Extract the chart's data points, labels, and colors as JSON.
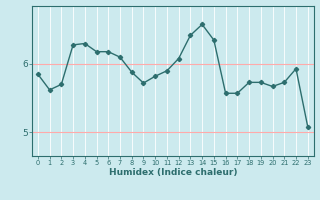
{
  "x": [
    0,
    1,
    2,
    3,
    4,
    5,
    6,
    7,
    8,
    9,
    10,
    11,
    12,
    13,
    14,
    15,
    16,
    17,
    18,
    19,
    20,
    21,
    22,
    23
  ],
  "y": [
    5.85,
    5.62,
    5.7,
    6.28,
    6.3,
    6.18,
    6.18,
    6.1,
    5.88,
    5.72,
    5.82,
    5.9,
    6.08,
    6.42,
    6.58,
    6.35,
    5.57,
    5.57,
    5.73,
    5.73,
    5.67,
    5.73,
    5.93,
    5.08
  ],
  "line_color": "#2d6e6e",
  "marker": "D",
  "marker_size": 2.2,
  "xlabel": "Humidex (Indice chaleur)",
  "bg_color": "#cceaee",
  "yticks": [
    5,
    6
  ],
  "ylim": [
    4.65,
    6.85
  ],
  "xlim": [
    -0.5,
    23.5
  ],
  "hgrid_color": "#ffaaaa",
  "vgrid_color": "#ffffff"
}
